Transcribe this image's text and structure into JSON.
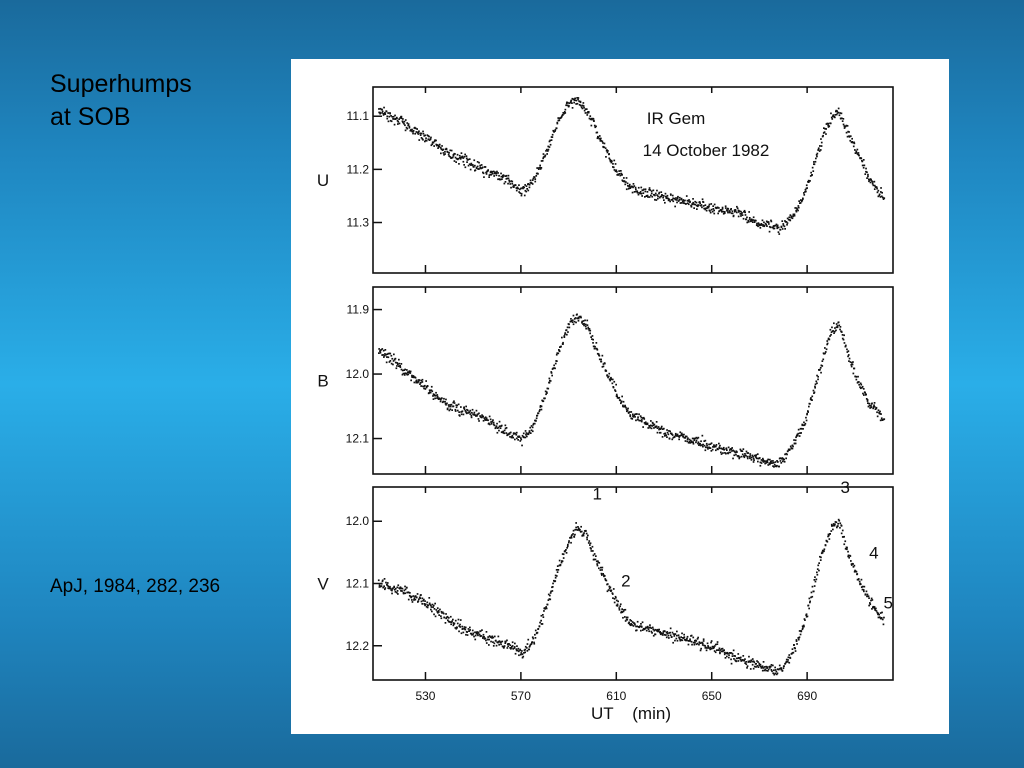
{
  "slide": {
    "title_lines": [
      "Superhumps",
      "at SOB"
    ],
    "citation": "ApJ, 1984, 282, 236"
  },
  "chart_data": {
    "type": "scatter",
    "title_lines": [
      "IR Gem",
      "14 October 1982"
    ],
    "xlabel": "UT    (min)",
    "x_ticks": [
      530,
      570,
      610,
      650,
      690
    ],
    "xlim": [
      508,
      726
    ],
    "panels": [
      {
        "name": "U",
        "ylim": [
          11.395,
          11.045
        ],
        "y_ticks": [
          11.1,
          11.2,
          11.3
        ],
        "y_tick_labels": [
          "11.1",
          "11.2",
          "11.3"
        ],
        "curve": [
          [
            510,
            11.09
          ],
          [
            520,
            11.11
          ],
          [
            530,
            11.14
          ],
          [
            540,
            11.17
          ],
          [
            550,
            11.19
          ],
          [
            560,
            11.21
          ],
          [
            565,
            11.22
          ],
          [
            570,
            11.24
          ],
          [
            575,
            11.22
          ],
          [
            580,
            11.17
          ],
          [
            585,
            11.11
          ],
          [
            590,
            11.075
          ],
          [
            593,
            11.07
          ],
          [
            596,
            11.08
          ],
          [
            600,
            11.11
          ],
          [
            605,
            11.16
          ],
          [
            610,
            11.2
          ],
          [
            615,
            11.23
          ],
          [
            620,
            11.24
          ],
          [
            630,
            11.25
          ],
          [
            640,
            11.26
          ],
          [
            650,
            11.27
          ],
          [
            660,
            11.28
          ],
          [
            670,
            11.3
          ],
          [
            678,
            11.31
          ],
          [
            683,
            11.29
          ],
          [
            688,
            11.25
          ],
          [
            692,
            11.2
          ],
          [
            696,
            11.14
          ],
          [
            700,
            11.1
          ],
          [
            703,
            11.09
          ],
          [
            706,
            11.12
          ],
          [
            710,
            11.16
          ],
          [
            714,
            11.2
          ],
          [
            718,
            11.23
          ],
          [
            722,
            11.25
          ]
        ]
      },
      {
        "name": "B",
        "ylim": [
          12.155,
          11.865
        ],
        "y_ticks": [
          11.9,
          12.0,
          12.1
        ],
        "y_tick_labels": [
          "11.9",
          "12.0",
          "12.1"
        ],
        "curve": [
          [
            510,
            11.96
          ],
          [
            520,
            11.99
          ],
          [
            530,
            12.02
          ],
          [
            540,
            12.05
          ],
          [
            550,
            12.06
          ],
          [
            560,
            12.08
          ],
          [
            565,
            12.09
          ],
          [
            570,
            12.1
          ],
          [
            575,
            12.08
          ],
          [
            580,
            12.03
          ],
          [
            585,
            11.97
          ],
          [
            590,
            11.92
          ],
          [
            593,
            11.91
          ],
          [
            597,
            11.92
          ],
          [
            600,
            11.95
          ],
          [
            605,
            11.99
          ],
          [
            610,
            12.03
          ],
          [
            615,
            12.06
          ],
          [
            620,
            12.07
          ],
          [
            630,
            12.09
          ],
          [
            640,
            12.1
          ],
          [
            650,
            12.11
          ],
          [
            660,
            12.12
          ],
          [
            670,
            12.13
          ],
          [
            677,
            12.14
          ],
          [
            682,
            12.12
          ],
          [
            688,
            12.08
          ],
          [
            692,
            12.03
          ],
          [
            696,
            11.98
          ],
          [
            700,
            11.93
          ],
          [
            703,
            11.92
          ],
          [
            706,
            11.96
          ],
          [
            710,
            12.0
          ],
          [
            715,
            12.04
          ],
          [
            720,
            12.06
          ],
          [
            722,
            12.07
          ]
        ]
      },
      {
        "name": "V",
        "ylim": [
          12.255,
          11.945
        ],
        "y_ticks": [
          12.0,
          12.1,
          12.2
        ],
        "y_tick_labels": [
          "12.0",
          "12.1",
          "12.2"
        ],
        "curve": [
          [
            510,
            12.1
          ],
          [
            520,
            12.11
          ],
          [
            530,
            12.13
          ],
          [
            540,
            12.16
          ],
          [
            550,
            12.18
          ],
          [
            560,
            12.19
          ],
          [
            565,
            12.2
          ],
          [
            570,
            12.21
          ],
          [
            575,
            12.19
          ],
          [
            580,
            12.14
          ],
          [
            585,
            12.08
          ],
          [
            590,
            12.03
          ],
          [
            593,
            12.01
          ],
          [
            597,
            12.02
          ],
          [
            600,
            12.05
          ],
          [
            605,
            12.09
          ],
          [
            610,
            12.13
          ],
          [
            615,
            12.16
          ],
          [
            620,
            12.17
          ],
          [
            630,
            12.18
          ],
          [
            640,
            12.19
          ],
          [
            650,
            12.2
          ],
          [
            660,
            12.22
          ],
          [
            670,
            12.23
          ],
          [
            677,
            12.24
          ],
          [
            682,
            12.22
          ],
          [
            688,
            12.17
          ],
          [
            692,
            12.11
          ],
          [
            696,
            12.05
          ],
          [
            700,
            12.01
          ],
          [
            703,
            12.0
          ],
          [
            706,
            12.04
          ],
          [
            710,
            12.08
          ],
          [
            715,
            12.12
          ],
          [
            720,
            12.15
          ],
          [
            722,
            12.16
          ]
        ],
        "annotations": [
          {
            "text": "1",
            "x": 602,
            "y": 11.965
          },
          {
            "text": "2",
            "x": 614,
            "y": 12.105
          },
          {
            "text": "3",
            "x": 706,
            "y": 11.955
          },
          {
            "text": "4",
            "x": 718,
            "y": 12.06
          },
          {
            "text": "5",
            "x": 724,
            "y": 12.14
          }
        ]
      }
    ],
    "colors": {
      "points": "#111111",
      "frame": "#111111"
    }
  }
}
